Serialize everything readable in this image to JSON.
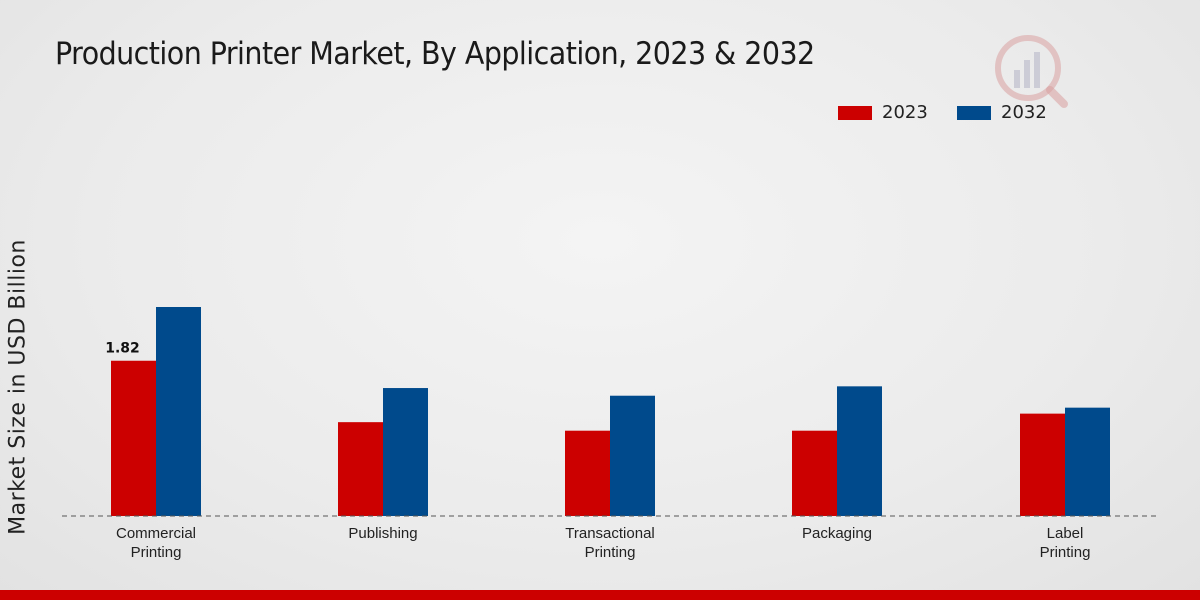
{
  "chart_data": {
    "type": "bar",
    "title": "Production Printer Market, By Application, 2023 & 2032",
    "xlabel": "",
    "ylabel": "Market Size in USD Billion",
    "categories": [
      [
        "Commercial",
        "Printing"
      ],
      [
        "Publishing"
      ],
      [
        "Transactional",
        "Printing"
      ],
      [
        "Packaging"
      ],
      [
        "Label",
        "Printing"
      ]
    ],
    "series": [
      {
        "name": "2023",
        "color": "#cc0000",
        "values": [
          1.82,
          1.1,
          1.0,
          1.0,
          1.2
        ]
      },
      {
        "name": "2032",
        "color": "#004a8c",
        "values": [
          2.45,
          1.5,
          1.41,
          1.52,
          1.27
        ]
      }
    ],
    "data_labels": [
      {
        "series": 0,
        "index": 0,
        "text": "1.82"
      }
    ],
    "ylim": [
      0,
      4.5
    ],
    "grid": false,
    "legend": "top-right"
  }
}
